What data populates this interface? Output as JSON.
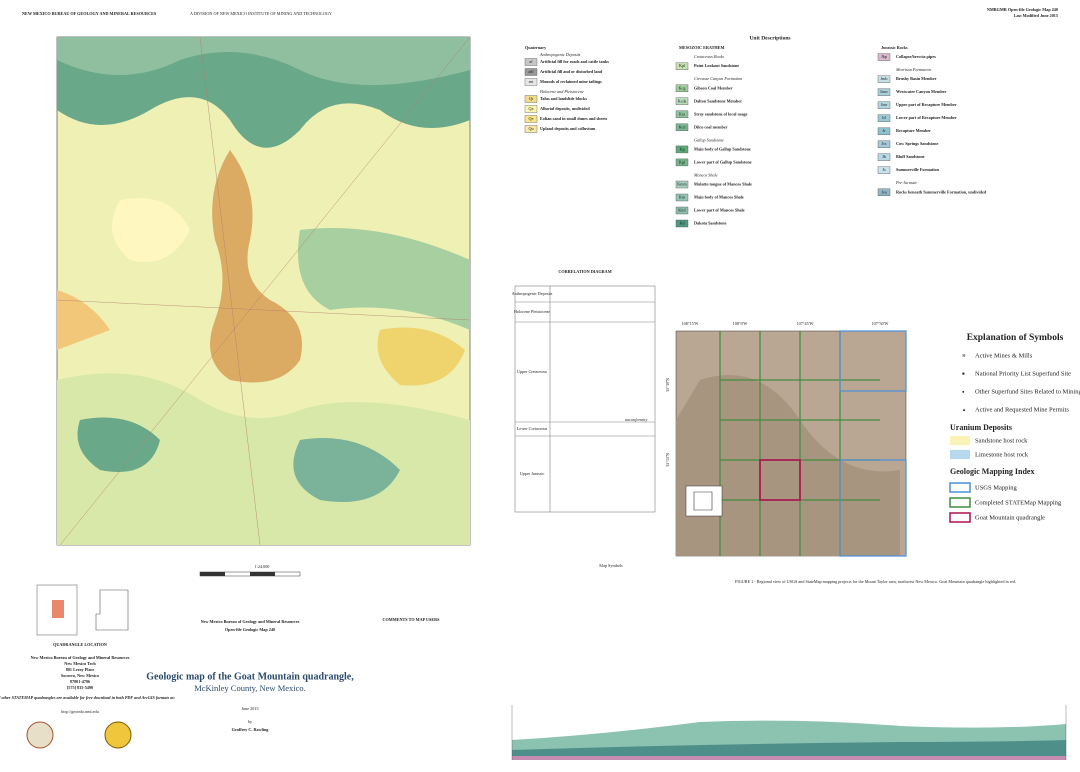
{
  "header": {
    "left": "NEW MEXICO BUREAU OF GEOLOGY AND MINERAL RESOURCES",
    "left_sub": "A DIVISION OF NEW MEXICO INSTITUTE OF MINING AND TECHNOLOGY",
    "right": "NMBGMR Open-file Geologic Map 240",
    "right_sub": "Last Modified June 2015"
  },
  "units": {
    "title": "Unit Descriptions",
    "quaternary": [
      {
        "text": "Quaternary"
      },
      {
        "text": "Anthropogenic Deposits"
      },
      {
        "code": "af",
        "text": "Artificial fill for roads and cattle tanks",
        "color": "#c7c7c7"
      },
      {
        "code": "adf",
        "text": "Artificial fill and or disturbed land",
        "color": "#9a9a9a"
      },
      {
        "code": "mt",
        "text": "Mounds of reclaimed mine tailings",
        "color": "#e6e6e6"
      },
      {
        "text": "Holocene and Pleistocene"
      },
      {
        "code": "Qt",
        "text": "Talus and landslide blocks",
        "color": "#f3dd8a"
      },
      {
        "code": "Qa",
        "text": "Alluvial deposits, undivided",
        "color": "#fff3b0"
      },
      {
        "code": "Qe",
        "text": "Eolian sand in small dunes and sheets",
        "color": "#fae58c"
      },
      {
        "code": "Qu",
        "text": "Upland deposits and colluvium",
        "color": "#f7e9a6"
      }
    ],
    "mesozoic": [
      {
        "text": "MESOZOIC ERATHEM"
      },
      {
        "text": "Cretaceous Rocks"
      },
      {
        "code": "Kpl",
        "text": "Point Lookout Sandstone",
        "color": "#c6e2b0"
      },
      {
        "text": "Crevasse Canyon Formation"
      },
      {
        "code": "Kcg",
        "text": "Gibson Coal Member",
        "color": "#9fcf9a"
      },
      {
        "code": "Kcda",
        "text": "Dalton Sandstone Member",
        "color": "#b8dcbc"
      },
      {
        "code": "Kss",
        "text": "Stray sandstone of local usage",
        "color": "#8fc3a0"
      },
      {
        "code": "Kcd",
        "text": "Dilco coal member",
        "color": "#7bb894"
      },
      {
        "text": "Gallup Sandstone"
      },
      {
        "code": "Kg",
        "text": "Main body of Gallup Sandstone",
        "color": "#5ea978"
      },
      {
        "code": "Kgl",
        "text": "Lower part of Gallup Sandstone",
        "color": "#76b58c"
      },
      {
        "text": "Mancos Shale"
      },
      {
        "code": "Kmm",
        "text": "Mulatto tongue of Mancos Shale",
        "color": "#a8d0c0"
      },
      {
        "code": "Km",
        "text": "Main body of Mancos Shale",
        "color": "#93c4b4"
      },
      {
        "code": "Kml",
        "text": "Lower part of Mancos Shale",
        "color": "#8cbfae"
      },
      {
        "code": "Kd",
        "text": "Dakota Sandstone",
        "color": "#4e9a82"
      }
    ],
    "jurassic": [
      {
        "text": "Jurassic Rocks"
      },
      {
        "code": "Jbp",
        "text": "Collapse/breccia pipes",
        "color": "#d9b8d0"
      },
      {
        "text": "Morrison Formation"
      },
      {
        "code": "Jmb",
        "text": "Brushy Basin Member",
        "color": "#c6e0e8"
      },
      {
        "code": "Jmw",
        "text": "Westwater Canyon Member",
        "color": "#a7d0dc"
      },
      {
        "code": "Jmr",
        "text": "Upper part of Recapture Member",
        "color": "#b4d6e2"
      },
      {
        "code": "Jrl",
        "text": "Lower part of Recapture Member",
        "color": "#9cc9d6"
      },
      {
        "code": "Jr",
        "text": "Recapture Member",
        "color": "#8fc0d0"
      },
      {
        "code": "Jcs",
        "text": "Cow Springs Sandstone",
        "color": "#a4c8d8"
      },
      {
        "code": "Jb",
        "text": "Bluff Sandstone",
        "color": "#b8d8e6"
      },
      {
        "code": "Js",
        "text": "Summerville Formation",
        "color": "#c8e2ec"
      },
      {
        "text": "Pre-Jurassic"
      },
      {
        "code": "Jsu",
        "text": "Rocks beneath Summerville Formation, undivided",
        "color": "#8fb8c4"
      }
    ]
  },
  "correlation": {
    "title": "CORRELATION DIAGRAM",
    "rows": [
      "Anthropogenic Deposits",
      "Holocene Pleistocene",
      "Upper Cretaceous",
      "Lower Cretaceous",
      "Upper Jurassic"
    ],
    "note": "unconformity"
  },
  "explanation": {
    "title": "Explanation of Symbols",
    "items": [
      "Active Mines & Mills",
      "National Priority List Superfund Site",
      "Other Superfund Sites Related to Mining/Industry",
      "Active and Requested Mine Permits"
    ],
    "uranium_title": "Uranium Deposits",
    "uranium": [
      "Sandstone host rock",
      "Limestone host rock"
    ],
    "index_title": "Geologic Mapping Index",
    "index": [
      "USGS Mapping",
      "Completed STATEMap Mapping",
      "Goat Mountain quadrangle"
    ]
  },
  "inset": {
    "lon_labels": [
      "108°15'W",
      "108°0'W",
      "107°45'W",
      "107°30'W"
    ],
    "lat_labels": [
      "35°30'N",
      "35°15'N"
    ],
    "caption": "FIGURE 1 - Regional view of USGS and StateMap mapping projects for the Mount Taylor area, northwest New Mexico. Goat Mountain quadrangle highlighted in red."
  },
  "title_block": {
    "scale": "1:24,000",
    "publisher": "New Mexico Bureau of Geology and Mineral Resources",
    "series": "Open-file Geologic Map 240",
    "title": "Geologic map of the Goat Mountain quadrangle,",
    "subtitle": "McKinley County, New Mexico.",
    "date": "June 2015",
    "by": "by",
    "author": "Geoffrey C. Rawling"
  },
  "location": {
    "title": "QUADRANGLE LOCATION",
    "address": [
      "New Mexico Bureau of Geology and Mineral Resources",
      "New Mexico Tech",
      "801 Leroy Place",
      "Socorro, New Mexico",
      "87801-4796",
      "[575] 835-5490"
    ],
    "download": "This and other STATEMAP quadrangles are available for free download in both PDF and ArcGIS formats at:",
    "url": "http://geoinfo.nmt.edu"
  },
  "sections": {
    "comments": "COMMENTS TO MAP USERS",
    "symbols": "Map Symbols"
  }
}
